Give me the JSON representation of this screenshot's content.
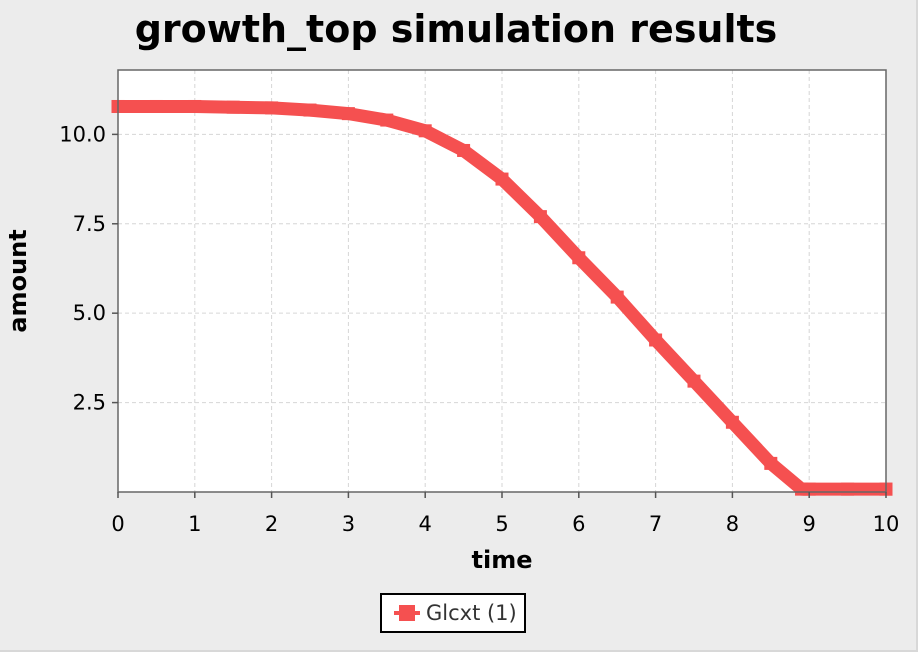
{
  "chart_data": {
    "type": "line",
    "title": "growth_top simulation results",
    "xlabel": "time",
    "ylabel": "amount",
    "xlim": [
      0,
      10
    ],
    "ylim": [
      0,
      11.8
    ],
    "xticks": [
      "0",
      "1",
      "2",
      "3",
      "4",
      "5",
      "6",
      "7",
      "8",
      "9",
      "10"
    ],
    "yticks": [
      "2.5",
      "5.0",
      "7.5",
      "10.0"
    ],
    "grid": true,
    "legend_position": "bottom",
    "series": [
      {
        "name": "Glcxt (1)",
        "color": "#f55050",
        "x": [
          0,
          0.5,
          1,
          1.5,
          2,
          2.5,
          3,
          3.5,
          4,
          4.5,
          5,
          5.5,
          6,
          6.5,
          7,
          7.5,
          8,
          8.5,
          8.9,
          9,
          9.5,
          10
        ],
        "y": [
          10.78,
          10.78,
          10.78,
          10.76,
          10.74,
          10.68,
          10.58,
          10.4,
          10.1,
          9.55,
          8.75,
          7.7,
          6.55,
          5.45,
          4.25,
          3.1,
          1.95,
          0.8,
          0.08,
          0.08,
          0.08,
          0.08
        ]
      }
    ]
  }
}
